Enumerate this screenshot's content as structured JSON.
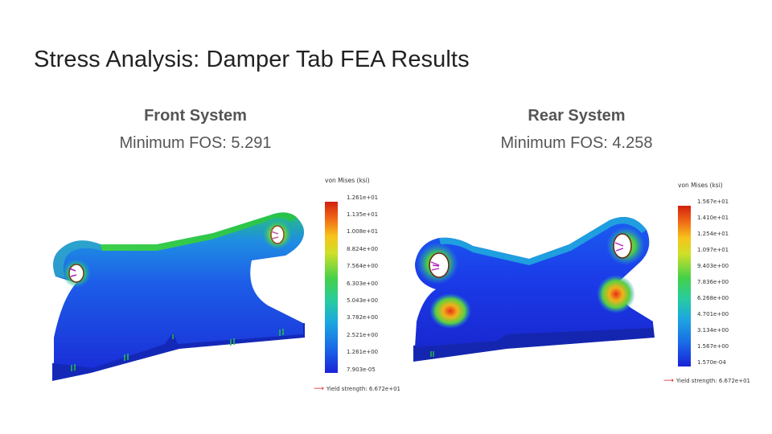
{
  "slide": {
    "title": "Stress Analysis: Damper Tab FEA Results"
  },
  "front": {
    "heading": "Front System",
    "fos": "Minimum FOS: 5.291",
    "legend": {
      "title": "von Mises (ksi)",
      "ticks": [
        "1.261e+01",
        "1.135e+01",
        "1.008e+01",
        "8.824e+00",
        "7.564e+00",
        "6.303e+00",
        "5.043e+00",
        "3.782e+00",
        "2.521e+00",
        "1.261e+00",
        "7.903e-05"
      ],
      "yield": "Yield strength: 6.672e+01"
    }
  },
  "rear": {
    "heading": "Rear System",
    "fos": "Minimum FOS: 4.258",
    "legend": {
      "title": "von Mises (ksi)",
      "ticks": [
        "1.567e+01",
        "1.410e+01",
        "1.254e+01",
        "1.097e+01",
        "9.403e+00",
        "7.836e+00",
        "6.268e+00",
        "4.701e+00",
        "3.134e+00",
        "1.567e+00",
        "1.570e-04"
      ],
      "yield": "Yield strength: 6.672e+01"
    }
  },
  "colors": {
    "low_stress": "#1a2fe0",
    "mid_stress": "#22c84a",
    "high_stress": "#e52a10",
    "yield_arrow": "#e01a1a"
  }
}
